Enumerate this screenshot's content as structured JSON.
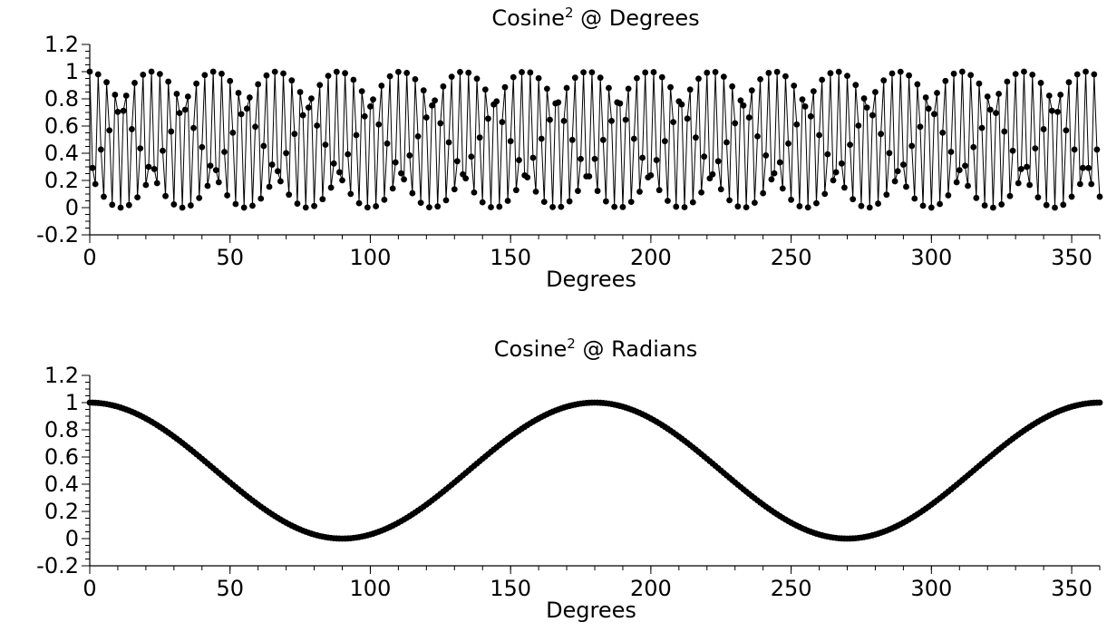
{
  "chart_data": [
    {
      "type": "line",
      "title": "Cosine",
      "title_superscript": "2",
      "title_suffix": " @ Degrees",
      "xlabel": "Degrees",
      "ylabel": "",
      "xlim": [
        0,
        360
      ],
      "ylim": [
        -0.2,
        1.2
      ],
      "xticks": [
        0,
        50,
        100,
        150,
        200,
        250,
        300,
        350
      ],
      "yticks": [
        1.2,
        1,
        0.8,
        0.6,
        0.4,
        0.2,
        0,
        -0.2
      ],
      "ytick_labels": [
        "1.2",
        "1",
        "0.8",
        "0.6",
        "0.4",
        "0.2",
        "0",
        "-0.2"
      ],
      "xtick_labels": [
        "0",
        "50",
        "100",
        "150",
        "200",
        "250",
        "300",
        "350"
      ],
      "grid": false,
      "marker": "circle",
      "color": "#000000",
      "series": [
        {
          "formula": "y = cos(x)^2 with x taken as radians",
          "x_start": 0,
          "x_end": 360,
          "x_step": 1
        }
      ]
    },
    {
      "type": "line",
      "title": "Cosine",
      "title_superscript": "2",
      "title_suffix": " @ Radians",
      "xlabel": "Degrees",
      "ylabel": "",
      "xlim": [
        0,
        360
      ],
      "ylim": [
        -0.2,
        1.2
      ],
      "xticks": [
        0,
        50,
        100,
        150,
        200,
        250,
        300,
        350
      ],
      "yticks": [
        1.2,
        1,
        0.8,
        0.6,
        0.4,
        0.2,
        0,
        -0.2
      ],
      "ytick_labels": [
        "1.2",
        "1",
        "0.8",
        "0.6",
        "0.4",
        "0.2",
        "0",
        "-0.2"
      ],
      "xtick_labels": [
        "0",
        "50",
        "100",
        "150",
        "200",
        "250",
        "300",
        "350"
      ],
      "grid": false,
      "marker": "circle",
      "color": "#000000",
      "series": [
        {
          "formula": "y = cos(x in degrees)^2",
          "x_start": 0,
          "x_end": 360,
          "x_step": 1
        }
      ]
    }
  ]
}
